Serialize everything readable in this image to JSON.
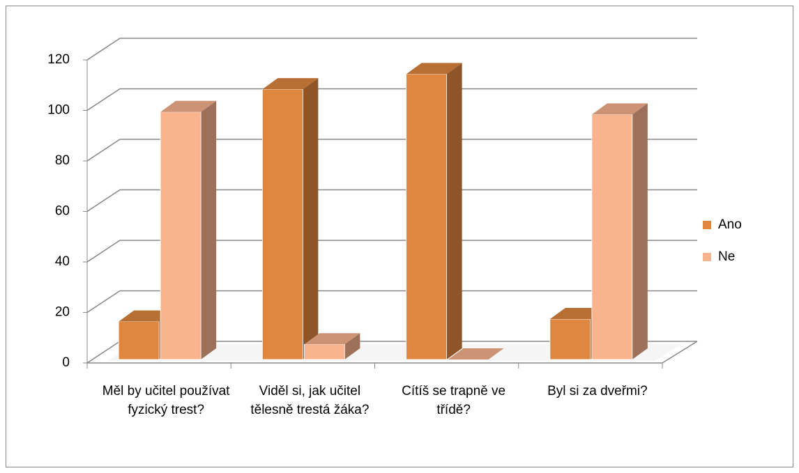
{
  "chart_data": {
    "type": "bar3d",
    "categories": [
      "Měl by učitel používat fyzický trest?",
      "Viděl si, jak učitel tělesně trestá žáka?",
      "Cítíš se trapně ve třídě?",
      "Byl si za dveřmi?"
    ],
    "series": [
      {
        "name": "Ano",
        "color": "#e0873f",
        "values": [
          15,
          107,
          113,
          16
        ]
      },
      {
        "name": "Ne",
        "color": "#f9b48e",
        "values": [
          98,
          6,
          0,
          97
        ]
      }
    ],
    "ylim": [
      0,
      120
    ],
    "yticks": [
      0,
      20,
      40,
      60,
      80,
      100,
      120
    ],
    "grid": true,
    "legend": "right"
  }
}
